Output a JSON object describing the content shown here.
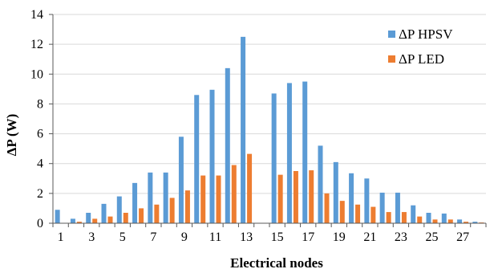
{
  "colors": {
    "hpsv": "#5b9bd5",
    "led": "#ed7d31",
    "grid": "#d9d9d9",
    "axis": "#595959"
  },
  "chart_data": {
    "type": "bar",
    "xlabel": "Electrical nodes",
    "ylabel": "ΔP (W)",
    "ylim": [
      0,
      14
    ],
    "yticks": [
      0,
      2,
      4,
      6,
      8,
      10,
      12,
      14
    ],
    "grid": true,
    "legend": "top-right",
    "categories": [
      "1",
      "2",
      "3",
      "4",
      "5",
      "6",
      "7",
      "8",
      "9",
      "10",
      "11",
      "12",
      "13",
      "14",
      "15",
      "16",
      "17",
      "18",
      "19",
      "20",
      "21",
      "22",
      "23",
      "24",
      "25",
      "26",
      "27",
      "28"
    ],
    "category_labels": [
      "1",
      "",
      "3",
      "",
      "5",
      "",
      "7",
      "",
      "9",
      "",
      "11",
      "",
      "13",
      "",
      "15",
      "",
      "17",
      "",
      "19",
      "",
      "21",
      "",
      "23",
      "",
      "25",
      "",
      "27",
      ""
    ],
    "series": [
      {
        "name": "ΔP HPSV",
        "values": [
          0.9,
          0.3,
          0.7,
          1.3,
          1.8,
          2.7,
          3.4,
          3.4,
          5.8,
          8.6,
          8.95,
          10.4,
          12.5,
          0,
          8.7,
          9.4,
          9.5,
          5.2,
          4.1,
          3.35,
          3.0,
          2.05,
          2.05,
          1.2,
          0.7,
          0.65,
          0.25,
          0.1
        ]
      },
      {
        "name": "ΔP LED",
        "values": [
          0,
          0.1,
          0.3,
          0.45,
          0.7,
          1.0,
          1.25,
          1.7,
          2.2,
          3.2,
          3.2,
          3.9,
          4.65,
          0,
          3.25,
          3.5,
          3.55,
          2.0,
          1.5,
          1.25,
          1.1,
          0.75,
          0.75,
          0.45,
          0.25,
          0.25,
          0.1,
          0.05
        ]
      }
    ]
  }
}
